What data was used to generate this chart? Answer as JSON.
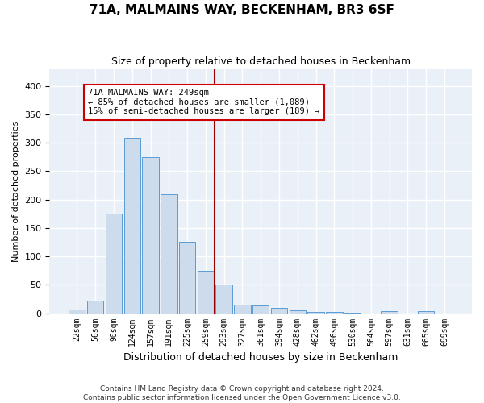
{
  "title1": "71A, MALMAINS WAY, BECKENHAM, BR3 6SF",
  "title2": "Size of property relative to detached houses in Beckenham",
  "xlabel": "Distribution of detached houses by size in Beckenham",
  "ylabel": "Number of detached properties",
  "bin_labels": [
    "22sqm",
    "56sqm",
    "90sqm",
    "124sqm",
    "157sqm",
    "191sqm",
    "225sqm",
    "259sqm",
    "293sqm",
    "327sqm",
    "361sqm",
    "394sqm",
    "428sqm",
    "462sqm",
    "496sqm",
    "530sqm",
    "564sqm",
    "597sqm",
    "631sqm",
    "665sqm",
    "699sqm"
  ],
  "bar_heights": [
    7,
    22,
    175,
    309,
    275,
    210,
    125,
    75,
    50,
    15,
    13,
    9,
    5,
    2,
    2,
    1,
    0,
    4,
    0,
    4,
    0
  ],
  "bar_color": "#ccdcec",
  "bar_edge_color": "#5b9bd5",
  "vline_pos": 7.5,
  "vline_color": "#990000",
  "annotation_text": "71A MALMAINS WAY: 249sqm\n← 85% of detached houses are smaller (1,089)\n15% of semi-detached houses are larger (189) →",
  "annotation_box_color": "#ffffff",
  "annotation_box_edge": "#cc0000",
  "ylim": [
    0,
    430
  ],
  "yticks": [
    0,
    50,
    100,
    150,
    200,
    250,
    300,
    350,
    400
  ],
  "footer1": "Contains HM Land Registry data © Crown copyright and database right 2024.",
  "footer2": "Contains public sector information licensed under the Open Government Licence v3.0.",
  "bg_color": "#eaf0f8"
}
